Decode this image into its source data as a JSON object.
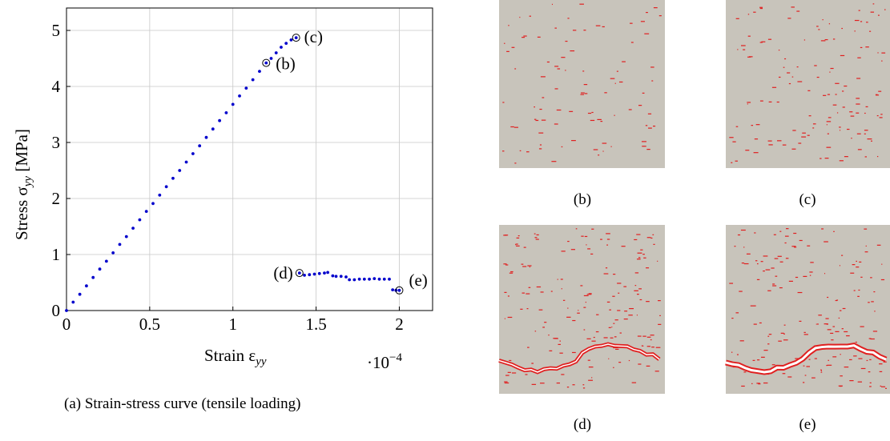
{
  "chart_data": {
    "type": "scatter",
    "x_label": {
      "text": "Strain ε",
      "sub": "yy"
    },
    "y_label": {
      "text": "Stress σ",
      "sub": "yy",
      "suffix": " [MPa]"
    },
    "x_scale_label": {
      "base": "·10",
      "exponent": "−4"
    },
    "caption": "(a) Strain-stress curve (tensile loading)",
    "color": "#0000cc",
    "xlim": [
      0,
      2.2
    ],
    "ylim": [
      0,
      5.4
    ],
    "xticks": [
      0,
      0.5,
      1,
      1.5,
      2
    ],
    "yticks": [
      0,
      1,
      2,
      3,
      4,
      5
    ],
    "grid": true,
    "x": [
      0,
      0.04,
      0.08,
      0.12,
      0.16,
      0.2,
      0.24,
      0.28,
      0.32,
      0.36,
      0.4,
      0.44,
      0.48,
      0.52,
      0.56,
      0.6,
      0.64,
      0.68,
      0.72,
      0.76,
      0.8,
      0.84,
      0.88,
      0.92,
      0.96,
      1.0,
      1.04,
      1.08,
      1.12,
      1.16,
      1.2,
      1.23,
      1.26,
      1.29,
      1.32,
      1.35,
      1.38,
      1.4,
      1.43,
      1.46,
      1.49,
      1.52,
      1.55,
      1.57,
      1.6,
      1.62,
      1.65,
      1.68,
      1.7,
      1.73,
      1.76,
      1.79,
      1.82,
      1.85,
      1.88,
      1.91,
      1.94,
      1.96,
      1.98,
      2.0
    ],
    "values": [
      0,
      0.15,
      0.29,
      0.44,
      0.59,
      0.74,
      0.88,
      1.03,
      1.18,
      1.32,
      1.47,
      1.62,
      1.77,
      1.91,
      2.06,
      2.21,
      2.36,
      2.5,
      2.65,
      2.8,
      2.94,
      3.09,
      3.24,
      3.39,
      3.53,
      3.68,
      3.83,
      3.97,
      4.12,
      4.27,
      4.42,
      4.5,
      4.6,
      4.7,
      4.77,
      4.83,
      4.87,
      0.67,
      0.63,
      0.64,
      0.65,
      0.66,
      0.67,
      0.68,
      0.62,
      0.61,
      0.61,
      0.6,
      0.55,
      0.55,
      0.56,
      0.56,
      0.56,
      0.57,
      0.56,
      0.56,
      0.56,
      0.37,
      0.36,
      0.36
    ],
    "annotations": [
      {
        "text": "(b)",
        "x": 1.2,
        "y": 4.42
      },
      {
        "text": "(c)",
        "x": 1.38,
        "y": 4.87
      },
      {
        "text": "(d)",
        "x": 1.4,
        "y": 0.67
      },
      {
        "text": "(e)",
        "x": 2.0,
        "y": 0.36
      }
    ]
  },
  "panels": [
    {
      "label": "(b)"
    },
    {
      "label": "(c)"
    },
    {
      "label": "(d)"
    },
    {
      "label": "(e)"
    }
  ]
}
